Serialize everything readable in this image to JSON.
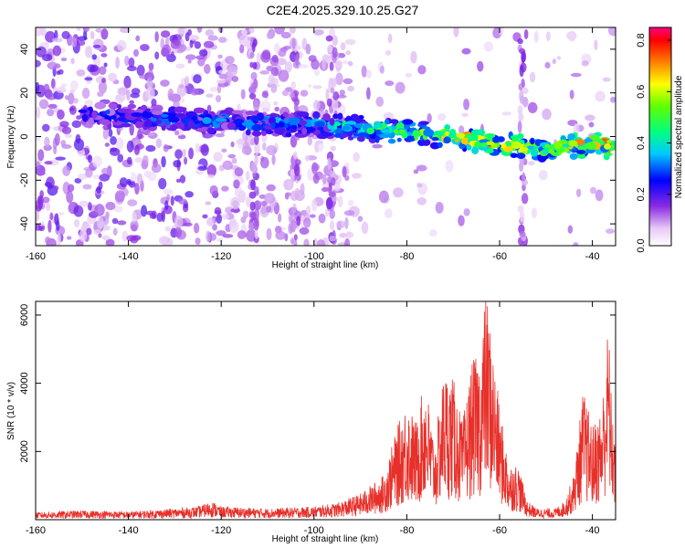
{
  "title": "C2E4.2025.329.10.25.G27",
  "chart_data": [
    {
      "type": "heatmap",
      "xlabel": "Height of straight line (km)",
      "ylabel": "Frequency (Hz)",
      "xlim": [
        -160,
        -35
      ],
      "ylim": [
        -50,
        50
      ],
      "xticks": [
        -160,
        -140,
        -120,
        -100,
        -80,
        -60,
        -40
      ],
      "yticks": [
        -40,
        -20,
        0,
        20,
        40
      ],
      "colorbar": {
        "label": "Normalized spectral amplitude",
        "range": [
          0,
          0.85
        ],
        "ticks": [
          0.0,
          0.2,
          0.4,
          0.6,
          0.8
        ]
      },
      "ridge": {
        "description_points_x": [
          -150,
          -140,
          -130,
          -120,
          -110,
          -100,
          -90,
          -80,
          -70,
          -60,
          -50,
          -40,
          -35
        ],
        "frequency_y": [
          10,
          9,
          8,
          7,
          6,
          5,
          4,
          2,
          0,
          -3,
          -6,
          -3,
          -5
        ],
        "peak_amplitude": [
          0.3,
          0.3,
          0.35,
          0.35,
          0.35,
          0.4,
          0.5,
          0.55,
          0.7,
          0.75,
          0.65,
          0.8,
          0.75
        ]
      }
    },
    {
      "type": "line",
      "xlabel": "Height of straight line (km)",
      "ylabel": "SNR (10 * v/v)",
      "xlim": [
        -160,
        -35
      ],
      "ylim": [
        0,
        6400
      ],
      "xticks": [
        -160,
        -140,
        -120,
        -100,
        -80,
        -60,
        -40
      ],
      "yticks": [
        2000,
        4000,
        6000
      ],
      "series": [
        {
          "color": "#e8302a",
          "x": [
            -160,
            -150,
            -140,
            -130,
            -125,
            -122,
            -120,
            -110,
            -100,
            -95,
            -90,
            -87,
            -85,
            -82,
            -80,
            -78,
            -76,
            -74,
            -72,
            -70,
            -68,
            -66,
            -64,
            -63,
            -62,
            -60,
            -58,
            -56,
            -54,
            -52,
            -50,
            -48,
            -46,
            -44,
            -42,
            -41,
            -40,
            -38,
            -36.5,
            -36,
            -35
          ],
          "y": [
            200,
            250,
            220,
            300,
            350,
            500,
            350,
            300,
            350,
            450,
            700,
            1000,
            1200,
            2500,
            3200,
            2600,
            3800,
            2000,
            4000,
            3800,
            2600,
            4200,
            4500,
            6300,
            5200,
            3000,
            1500,
            1500,
            500,
            300,
            300,
            300,
            500,
            1200,
            3500,
            3000,
            2500,
            3000,
            5400,
            3500,
            2000
          ]
        }
      ]
    }
  ]
}
